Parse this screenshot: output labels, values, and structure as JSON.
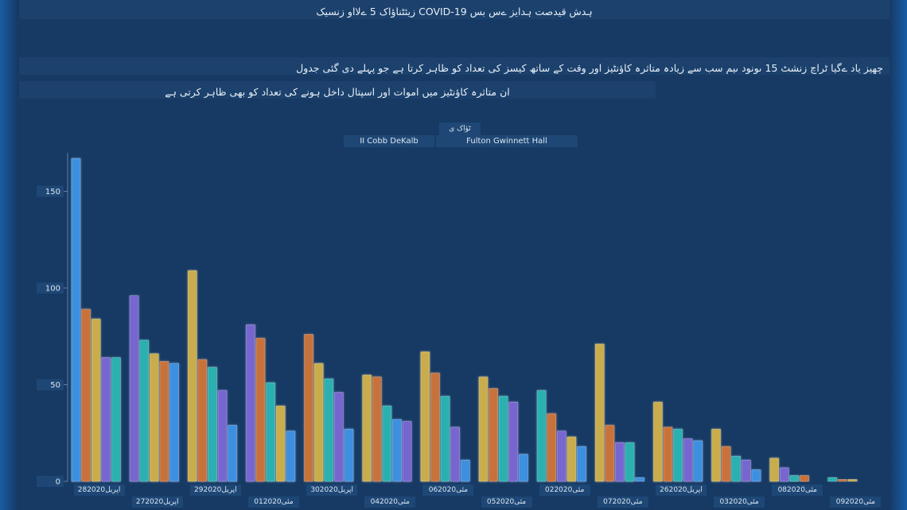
{
  "title": "زیئٹناؤاک 5 ےلااو زنسیک COVID-19 ہدش قیدصت ہدایز ےس بس",
  "description_line1": "چھیز یاد ےگیا ٹراچ زنشٹ 15 ںونود ںیم سب سے زیادہ متاثرہ کاؤنٹیز اور وقت کے ساتھ کیسز کی تعداد کو ظاہر کرتا ہے جو پہلے دی گئی جدول",
  "description_line2": "ان متاثرہ کاؤنٹیز میں اموات اور اسپتال داخل ہونے کی تعداد کو بھی ظاہر کرتی ہے",
  "legend": {
    "title": "ٹؤاک ی",
    "items": [
      "II Cobb DeKalb",
      "Fulton Gwinnett Hall"
    ]
  },
  "colors": {
    "series": [
      "#3d8fe0",
      "#c8723a",
      "#c9ad4e",
      "#7766cf",
      "#2bb0b0",
      "#3a84d6"
    ]
  },
  "chart_data": {
    "type": "bar",
    "yticks": [
      0,
      50,
      100,
      150
    ],
    "ylim": [
      0,
      170
    ],
    "grid": false,
    "categories": [
      "28اپریل2020",
      "27اپریل2020",
      "29اپریل2020",
      "01مئی2020",
      "30اپریل2020",
      "04مئی2020",
      "06مئی2020",
      "05مئی2020",
      "02مئی2020",
      "07مئی2020",
      "26اپریل2020",
      "03مئی2020",
      "08مئی2020",
      "09مئی2020"
    ],
    "series": [
      {
        "values": [
          167,
          0,
          0,
          0,
          0,
          0,
          0,
          0,
          0,
          0,
          0,
          0,
          0,
          0
        ]
      },
      {
        "values": [
          89,
          0,
          63,
          74,
          0,
          54,
          56,
          48,
          35,
          29,
          28,
          18,
          0,
          1
        ]
      },
      {
        "values": [
          84,
          66,
          109,
          39,
          61,
          55,
          67,
          54,
          23,
          71,
          41,
          27,
          12,
          1
        ]
      },
      {
        "values": [
          64,
          96,
          0,
          81,
          0,
          0,
          0,
          0,
          0,
          0,
          0,
          0,
          0,
          0
        ]
      },
      {
        "values": [
          64,
          73,
          59,
          51,
          53,
          39,
          44,
          44,
          47,
          20,
          28,
          13,
          3,
          2
        ]
      },
      {
        "values": [
          0,
          0,
          0,
          0,
          0,
          0,
          0,
          0,
          0,
          0,
          0,
          0,
          0,
          0
        ]
      }
    ],
    "bars": [
      [
        [
          0,
          167
        ],
        [
          1,
          89
        ],
        [
          2,
          84
        ],
        [
          3,
          64
        ],
        [
          4,
          64
        ]
      ],
      [
        [
          3,
          96
        ],
        [
          4,
          73
        ],
        [
          2,
          66
        ],
        [
          1,
          62
        ],
        [
          0,
          61
        ]
      ],
      [
        [
          2,
          109
        ],
        [
          1,
          63
        ],
        [
          4,
          59
        ],
        [
          3,
          47
        ],
        [
          0,
          29
        ]
      ],
      [
        [
          3,
          81
        ],
        [
          1,
          74
        ],
        [
          4,
          51
        ],
        [
          2,
          39
        ],
        [
          0,
          26
        ]
      ],
      [
        [
          1,
          76
        ],
        [
          2,
          61
        ],
        [
          4,
          53
        ],
        [
          3,
          46
        ],
        [
          0,
          27
        ]
      ],
      [
        [
          2,
          55
        ],
        [
          1,
          54
        ],
        [
          4,
          39
        ],
        [
          0,
          32
        ],
        [
          3,
          31
        ]
      ],
      [
        [
          2,
          67
        ],
        [
          1,
          56
        ],
        [
          4,
          44
        ],
        [
          3,
          28
        ],
        [
          0,
          11
        ]
      ],
      [
        [
          2,
          54
        ],
        [
          1,
          48
        ],
        [
          4,
          44
        ],
        [
          3,
          41
        ],
        [
          0,
          14
        ]
      ],
      [
        [
          4,
          47
        ],
        [
          1,
          35
        ],
        [
          3,
          26
        ],
        [
          2,
          23
        ],
        [
          0,
          18
        ]
      ],
      [
        [
          2,
          71
        ],
        [
          1,
          29
        ],
        [
          3,
          20
        ],
        [
          4,
          20
        ],
        [
          0,
          2
        ]
      ],
      [
        [
          2,
          41
        ],
        [
          1,
          28
        ],
        [
          4,
          27
        ],
        [
          3,
          22
        ],
        [
          0,
          21
        ]
      ],
      [
        [
          2,
          27
        ],
        [
          1,
          18
        ],
        [
          4,
          13
        ],
        [
          3,
          11
        ],
        [
          0,
          6
        ]
      ],
      [
        [
          2,
          12
        ],
        [
          3,
          7
        ],
        [
          4,
          3
        ],
        [
          1,
          3
        ]
      ],
      [
        [
          4,
          2
        ],
        [
          1,
          1
        ],
        [
          2,
          1
        ]
      ]
    ]
  }
}
